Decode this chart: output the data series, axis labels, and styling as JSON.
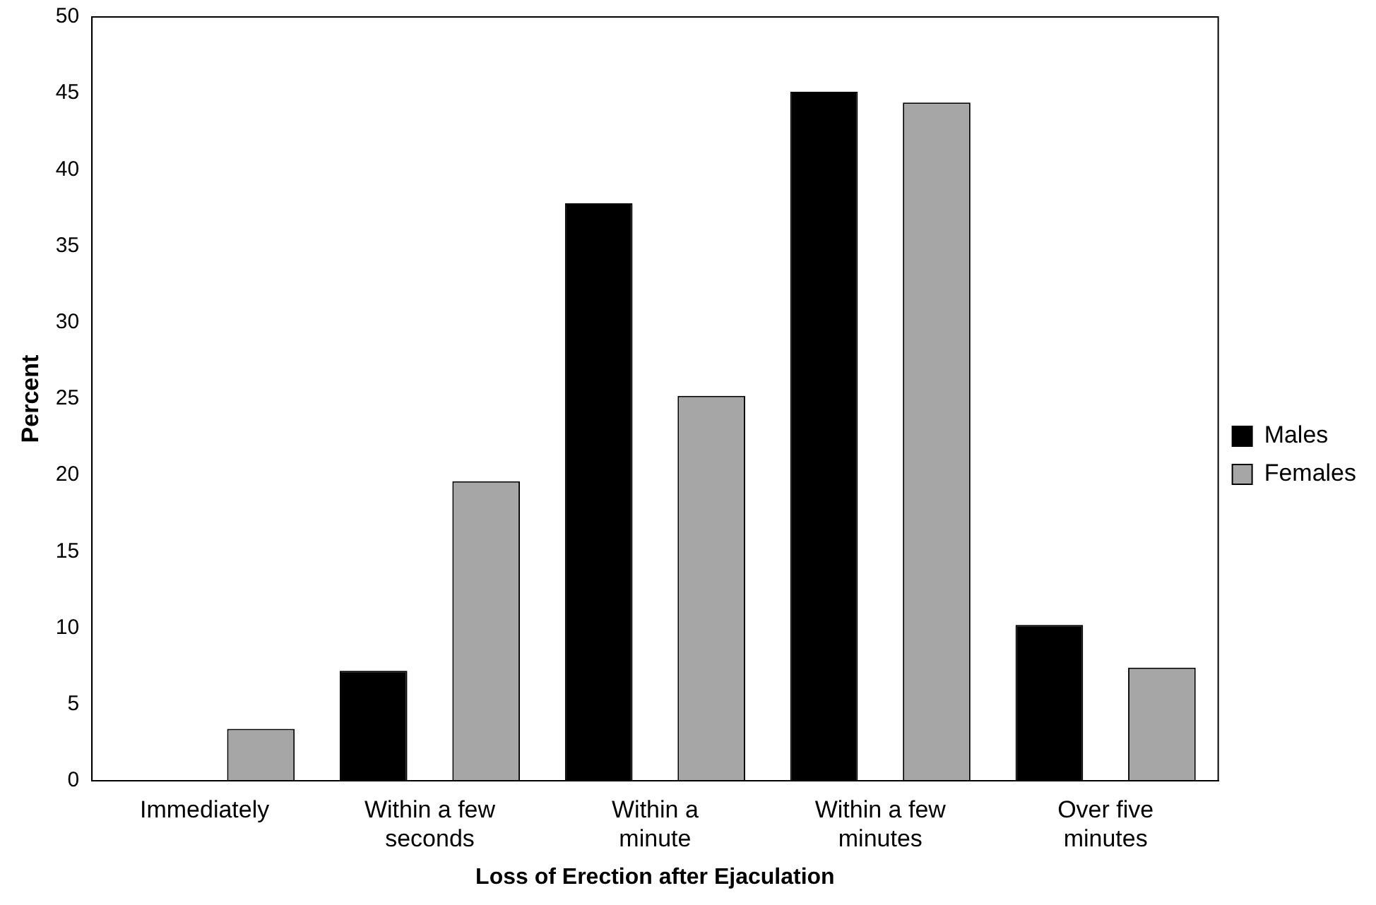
{
  "chart_data": {
    "type": "bar",
    "xlabel": "Loss of Erection after Ejaculation",
    "ylabel": "Percent",
    "categories": [
      "Immediately",
      "Within a few seconds",
      "Within a minute",
      "Within a few minutes",
      "Over five minutes"
    ],
    "series": [
      {
        "name": "Males",
        "color": "#000000",
        "values": [
          0,
          7.2,
          37.8,
          45.1,
          10.2
        ]
      },
      {
        "name": "Females",
        "color": "#a6a6a6",
        "values": [
          3.4,
          19.6,
          25.2,
          44.4,
          7.4
        ]
      }
    ],
    "ylim": [
      0,
      50
    ],
    "yticks": [
      0,
      5,
      10,
      15,
      20,
      25,
      30,
      35,
      40,
      45,
      50
    ],
    "grid": false,
    "legend": "right"
  }
}
